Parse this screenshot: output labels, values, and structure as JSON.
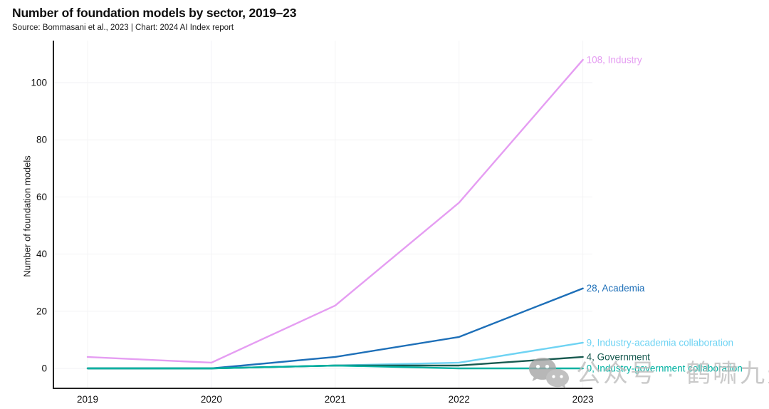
{
  "header": {
    "title": "Number of foundation models by sector, 2019–23",
    "subtitle": "Source: Bommasani et al., 2023 | Chart: 2024 AI Index report"
  },
  "chart_data": {
    "type": "line",
    "x": [
      "2019",
      "2020",
      "2021",
      "2022",
      "2023"
    ],
    "series": [
      {
        "name": "Industry",
        "color": "#e59df2",
        "values": [
          4,
          2,
          22,
          58,
          108
        ],
        "end_label": "108, Industry"
      },
      {
        "name": "Academia",
        "color": "#1d6fb8",
        "values": [
          0,
          0,
          4,
          11,
          28
        ],
        "end_label": "28, Academia"
      },
      {
        "name": "Industry-academia collaboration",
        "color": "#6ed3f3",
        "values": [
          0,
          0,
          1,
          2,
          9
        ],
        "end_label": "9, Industry-academia collaboration"
      },
      {
        "name": "Government",
        "color": "#185a50",
        "values": [
          0,
          0,
          1,
          1,
          4
        ],
        "end_label": "4, Government"
      },
      {
        "name": "Industry-government collaboration",
        "color": "#00b1a1",
        "values": [
          0,
          0,
          1,
          0,
          0
        ],
        "end_label": "0, Industry-government collaboration"
      }
    ],
    "title": "Number of foundation models by sector, 2019–23",
    "xlabel": "",
    "ylabel": "Number of foundation models",
    "ylim": [
      0,
      108
    ],
    "yticks": [
      0,
      20,
      40,
      60,
      80,
      100
    ],
    "grid": true,
    "legend_position": "end-of-line-labels-right"
  },
  "watermark": {
    "icon": "wechat-icon",
    "text": "公众号 · 鹤啸九天"
  }
}
